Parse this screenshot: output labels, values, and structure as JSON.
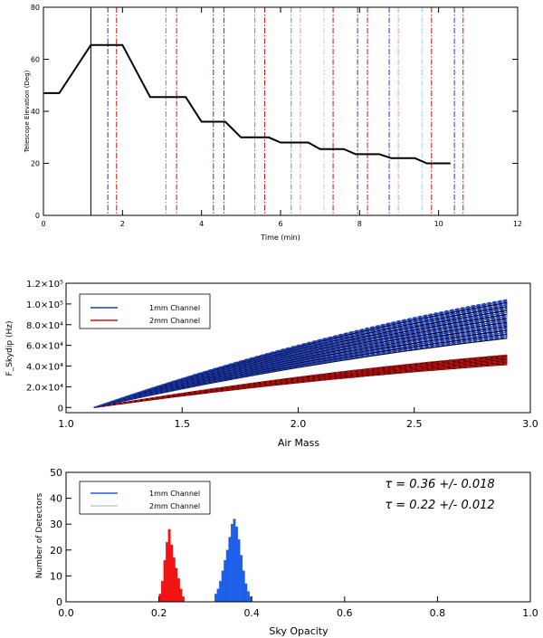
{
  "chart_data": [
    {
      "type": "line",
      "xlabel": "Time (min)",
      "ylabel": "Telescope Elevation (Deg)",
      "xlim": [
        0,
        12
      ],
      "ylim": [
        0,
        80
      ],
      "xticks": [
        "0",
        "2",
        "4",
        "6",
        "8",
        "10",
        "12"
      ],
      "yticks": [
        "0",
        "20",
        "40",
        "60",
        "80"
      ],
      "series": [
        {
          "name": "elevation",
          "color": "#000000",
          "x": [
            0,
            0.4,
            1.2,
            2.0,
            2.7,
            3.6,
            4.0,
            4.6,
            5.0,
            5.7,
            6.0,
            6.7,
            7.0,
            7.6,
            7.9,
            8.5,
            8.8,
            9.4,
            9.7,
            10.3
          ],
          "y": [
            47,
            47,
            65.5,
            65.5,
            45.5,
            45.5,
            36,
            36,
            30,
            30,
            28,
            28,
            25.5,
            25.5,
            23.5,
            23.5,
            22,
            22,
            20,
            20
          ]
        }
      ],
      "vlines": [
        {
          "x": 1.2,
          "color": "#000000",
          "dash": "solid"
        },
        {
          "x": 1.63,
          "color": "#1f3fc4",
          "dash": "dashdot"
        },
        {
          "x": 1.85,
          "color": "#cc1010",
          "dash": "dashdot"
        },
        {
          "x": 3.1,
          "color": "#3a9be0",
          "dash": "dashdot"
        },
        {
          "x": 3.37,
          "color": "#cc1010",
          "dash": "dashdot"
        },
        {
          "x": 4.3,
          "color": "#1f3fc4",
          "dash": "dashdot"
        },
        {
          "x": 4.57,
          "color": "#cc1010",
          "dash": "dashdot"
        },
        {
          "x": 5.35,
          "color": "#3a9be0",
          "dash": "dashdot"
        },
        {
          "x": 5.6,
          "color": "#cc1010",
          "dash": "dashdot"
        },
        {
          "x": 6.27,
          "color": "#3a9be0",
          "dash": "dashdot"
        },
        {
          "x": 6.5,
          "color": "#f09090",
          "dash": "dashdot"
        },
        {
          "x": 7.1,
          "color": "#a8d0f0",
          "dash": "dashdot"
        },
        {
          "x": 7.33,
          "color": "#cc1010",
          "dash": "dashdot"
        },
        {
          "x": 7.95,
          "color": "#1f3fc4",
          "dash": "dashdot"
        },
        {
          "x": 8.2,
          "color": "#cc1010",
          "dash": "dashdot"
        },
        {
          "x": 8.75,
          "color": "#1f3fc4",
          "dash": "dashdot"
        },
        {
          "x": 8.98,
          "color": "#f09090",
          "dash": "dashdot"
        },
        {
          "x": 9.58,
          "color": "#a8d0f0",
          "dash": "dashdot"
        },
        {
          "x": 9.82,
          "color": "#cc1010",
          "dash": "dashdot"
        },
        {
          "x": 10.4,
          "color": "#1f3fc4",
          "dash": "dashdot"
        },
        {
          "x": 10.62,
          "color": "#cc1010",
          "dash": "dashdot"
        }
      ]
    },
    {
      "type": "line",
      "xlabel": "Air Mass",
      "ylabel": "F_Skydip (Hz)",
      "xlim": [
        1.0,
        3.0
      ],
      "ylim": [
        -5000,
        120000
      ],
      "xticks": [
        "1.0",
        "1.5",
        "2.0",
        "2.5",
        "3.0"
      ],
      "yticks": [
        "0",
        "2.0×10⁴",
        "4.0×10⁴",
        "6.0×10⁴",
        "8.0×10⁴",
        "1.0×10⁵",
        "1.2×10⁵"
      ],
      "legend": [
        "1mm Channel",
        "2mm Channel"
      ],
      "legend_position": "top-left",
      "series": [
        {
          "name": "1mm Channel",
          "color": "#1f3fc4",
          "x_start": 1.12,
          "x_end": 2.9,
          "slope_min": 50000,
          "slope_max": 78000,
          "curve_count": 40
        },
        {
          "name": "2mm Channel",
          "color": "#d81414",
          "x_start": 1.12,
          "x_end": 2.9,
          "slope_min": 31000,
          "slope_max": 38000,
          "curve_count": 30
        }
      ]
    },
    {
      "type": "bar",
      "xlabel": "Sky Opacity",
      "ylabel": "Number of Detectors",
      "xlim": [
        0.0,
        1.0
      ],
      "ylim": [
        0,
        50
      ],
      "xticks": [
        "0.0",
        "0.2",
        "0.4",
        "0.6",
        "0.8",
        "1.0"
      ],
      "yticks": [
        "0",
        "10",
        "20",
        "30",
        "40",
        "50"
      ],
      "legend": [
        "1mm Channel",
        "2mm Channel"
      ],
      "legend_position": "top-left",
      "annotations": [
        {
          "text": "τ = 0.36 +/- 0.018",
          "color": "#1f3fc4"
        },
        {
          "text": "τ = 0.22 +/- 0.012",
          "color": "#d81414"
        }
      ],
      "series": [
        {
          "name": "1mm Channel",
          "color": "#1f5fe8",
          "bin_width": 0.005,
          "bins": [
            0.32,
            0.325,
            0.33,
            0.335,
            0.34,
            0.345,
            0.35,
            0.355,
            0.36,
            0.365,
            0.37,
            0.375,
            0.38,
            0.385,
            0.39,
            0.395
          ],
          "values": [
            3,
            5,
            8,
            12,
            16,
            20,
            25,
            30,
            32,
            29,
            24,
            18,
            12,
            7,
            4,
            2
          ]
        },
        {
          "name": "2mm Channel",
          "color": "#f21212",
          "bin_width": 0.005,
          "bins": [
            0.2,
            0.205,
            0.21,
            0.215,
            0.22,
            0.225,
            0.23,
            0.235,
            0.24,
            0.245,
            0.25
          ],
          "values": [
            3,
            8,
            16,
            23,
            28,
            22,
            17,
            13,
            9,
            5,
            2
          ]
        }
      ]
    }
  ]
}
